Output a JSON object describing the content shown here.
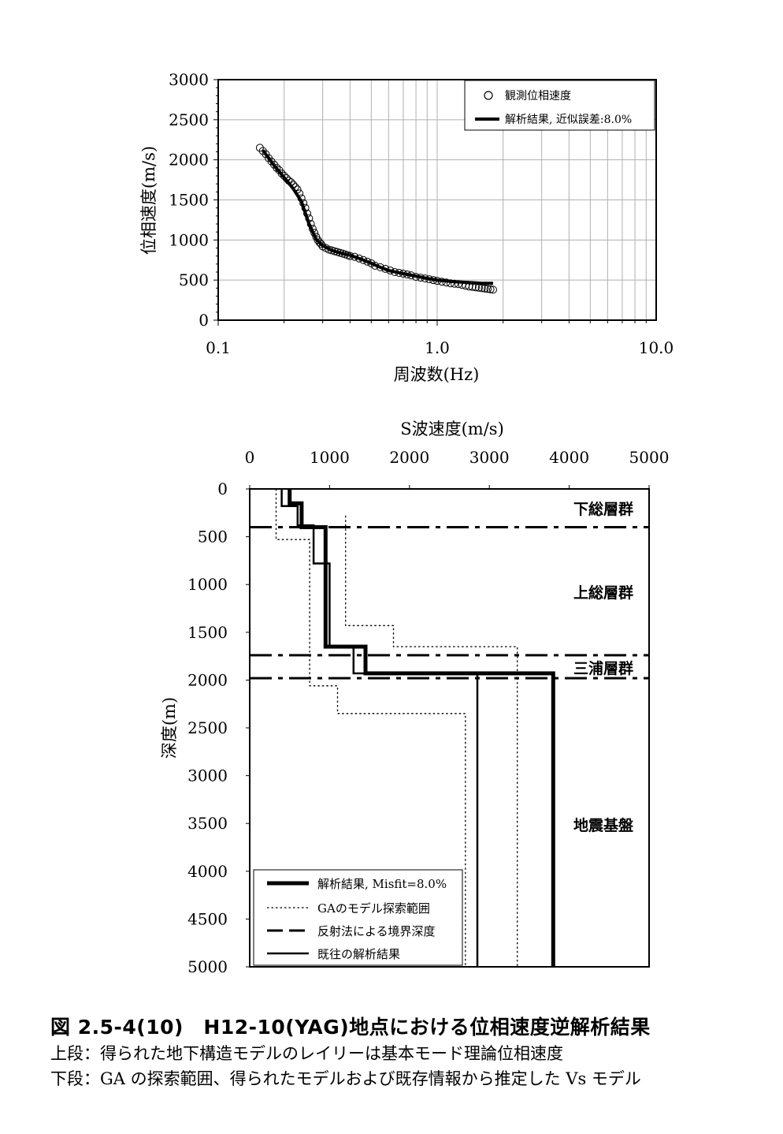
{
  "chart_data": [
    {
      "type": "scatter",
      "xscale": "log",
      "xlim": [
        0.1,
        10.0
      ],
      "ylim": [
        0,
        3000
      ],
      "grid": true,
      "legend_position": "top-right",
      "xlabel": "周波数(Hz)",
      "ylabel": "位相速度(m/s)",
      "xtick_labels": [
        "0.1",
        "1.0",
        "10.0"
      ],
      "xticks": [
        0.1,
        1.0,
        10.0
      ],
      "yticks": [
        0,
        500,
        1000,
        1500,
        2000,
        2500,
        3000
      ],
      "colors": {
        "observed": "#000000",
        "fit": "#000000",
        "grid": "#b0b0b0"
      },
      "series": [
        {
          "name": "観測位相速度",
          "marker": "open-circle",
          "x": [
            0.155,
            0.16,
            0.165,
            0.17,
            0.175,
            0.18,
            0.185,
            0.19,
            0.195,
            0.2,
            0.205,
            0.21,
            0.215,
            0.22,
            0.225,
            0.23,
            0.235,
            0.24,
            0.245,
            0.25,
            0.255,
            0.26,
            0.265,
            0.27,
            0.275,
            0.28,
            0.285,
            0.29,
            0.295,
            0.3,
            0.31,
            0.32,
            0.33,
            0.34,
            0.35,
            0.36,
            0.37,
            0.38,
            0.39,
            0.4,
            0.42,
            0.44,
            0.46,
            0.48,
            0.5,
            0.52,
            0.55,
            0.58,
            0.61,
            0.64,
            0.67,
            0.7,
            0.73,
            0.76,
            0.8,
            0.84,
            0.88,
            0.92,
            0.96,
            1.0,
            1.05,
            1.1,
            1.15,
            1.2,
            1.25,
            1.3,
            1.35,
            1.4,
            1.45,
            1.5,
            1.55,
            1.6,
            1.65,
            1.7,
            1.75,
            1.8
          ],
          "y": [
            2150,
            2110,
            2070,
            2020,
            1980,
            1940,
            1900,
            1870,
            1830,
            1800,
            1770,
            1740,
            1720,
            1690,
            1660,
            1630,
            1580,
            1520,
            1460,
            1400,
            1330,
            1270,
            1200,
            1140,
            1090,
            1040,
            1000,
            970,
            950,
            920,
            900,
            880,
            870,
            860,
            850,
            840,
            830,
            820,
            810,
            800,
            790,
            770,
            750,
            730,
            710,
            680,
            660,
            640,
            620,
            600,
            590,
            580,
            570,
            560,
            540,
            530,
            520,
            510,
            500,
            490,
            480,
            470,
            460,
            455,
            450,
            440,
            430,
            420,
            415,
            410,
            405,
            400,
            395,
            390,
            385,
            380
          ]
        },
        {
          "name": "解析結果, 近似誤差:8.0%",
          "type": "line",
          "x": [
            0.16,
            0.18,
            0.2,
            0.22,
            0.24,
            0.26,
            0.28,
            0.3,
            0.33,
            0.36,
            0.4,
            0.45,
            0.5,
            0.55,
            0.6,
            0.7,
            0.8,
            0.9,
            1.0,
            1.2,
            1.4,
            1.6,
            1.8
          ],
          "y": [
            2120,
            1930,
            1780,
            1640,
            1480,
            1200,
            1010,
            930,
            870,
            840,
            810,
            760,
            710,
            660,
            620,
            580,
            550,
            520,
            500,
            480,
            470,
            460,
            460
          ]
        }
      ]
    },
    {
      "type": "line",
      "title": "S波速度(m/s)",
      "ylabel": "深度(m)",
      "xlim": [
        0,
        5000
      ],
      "ylim": [
        0,
        5000
      ],
      "y_inverted": true,
      "x_axis_position": "top",
      "xticks": [
        0,
        1000,
        2000,
        3000,
        4000,
        5000
      ],
      "yticks": [
        0,
        500,
        1000,
        1500,
        2000,
        2500,
        3000,
        3500,
        4000,
        4500,
        5000
      ],
      "legend_position": "bottom-left",
      "boundary_depths": [
        400,
        1740,
        1980
      ],
      "formation_labels": [
        "下総層群",
        "上総層群",
        "三浦層群",
        "地震基盤"
      ],
      "series": [
        {
          "name": "解析結果, Misfit=8.0%",
          "style": "thick-solid",
          "points": [
            [
              500,
              0
            ],
            [
              500,
              150
            ],
            [
              650,
              150
            ],
            [
              650,
              400
            ],
            [
              950,
              400
            ],
            [
              950,
              1650
            ],
            [
              1450,
              1650
            ],
            [
              1450,
              1930
            ],
            [
              3800,
              1930
            ],
            [
              3800,
              5000
            ]
          ]
        },
        {
          "name": "GAのモデル探索範囲 (min)",
          "style": "dotted",
          "points": [
            [
              330,
              0
            ],
            [
              330,
              530
            ],
            [
              750,
              530
            ],
            [
              750,
              2060
            ],
            [
              1100,
              2060
            ],
            [
              1100,
              2350
            ],
            [
              2700,
              2350
            ],
            [
              2700,
              5000
            ]
          ]
        },
        {
          "name": "GAのモデル探索範囲 (max)",
          "style": "dotted",
          "points": [
            [
              1200,
              280
            ],
            [
              1200,
              1430
            ],
            [
              1800,
              1430
            ],
            [
              1800,
              1650
            ],
            [
              3350,
              1650
            ],
            [
              3350,
              5000
            ]
          ]
        },
        {
          "name": "反射法による境界深度",
          "style": "dash-dot"
        },
        {
          "name": "既往の解析結果",
          "style": "solid",
          "points": [
            [
              400,
              0
            ],
            [
              400,
              180
            ],
            [
              600,
              180
            ],
            [
              600,
              380
            ],
            [
              800,
              380
            ],
            [
              800,
              780
            ],
            [
              1000,
              780
            ],
            [
              1000,
              1650
            ],
            [
              1300,
              1650
            ],
            [
              1300,
              1930
            ],
            [
              2850,
              1930
            ],
            [
              2850,
              5000
            ]
          ]
        }
      ],
      "legend": [
        "解析結果, Misfit=8.0%",
        "GAのモデル探索範囲",
        "反射法による境界深度",
        "既往の解析結果"
      ]
    }
  ],
  "caption": {
    "title": "図 2.5-4(10)　H12-10(YAG)地点における位相速度逆解析結果",
    "line1": "上段：得られた地下構造モデルのレイリーは基本モード理論位相速度",
    "line2": "下段：GA の探索範囲、得られたモデルおよび既存情報から推定した Vs モデル"
  }
}
